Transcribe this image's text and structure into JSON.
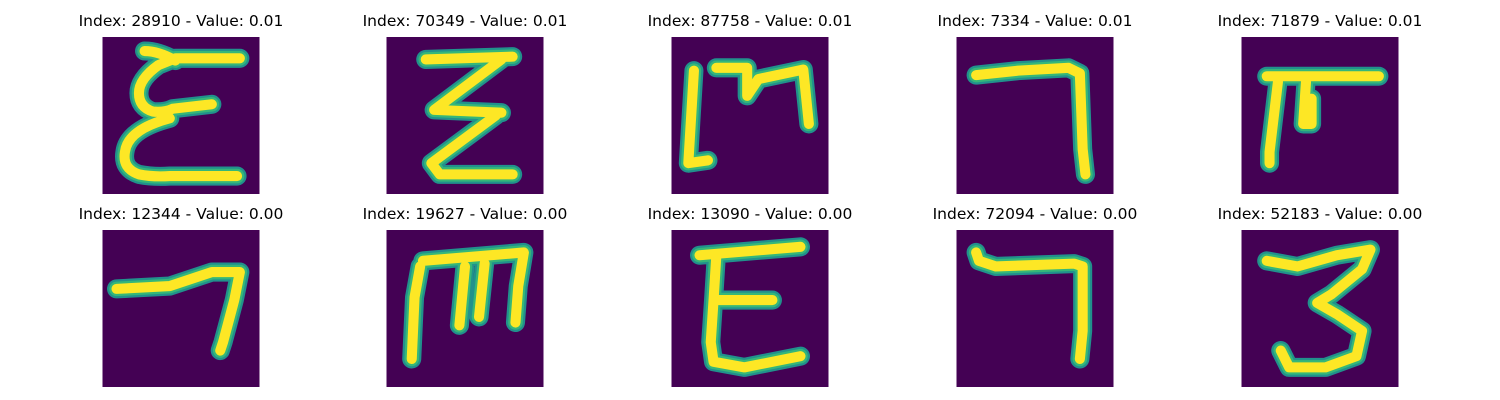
{
  "colors": {
    "background": "#440154",
    "stroke_core": "#fde725",
    "stroke_mid": "#35b779",
    "stroke_edge": "#21918c"
  },
  "panels": [
    {
      "title": "Index: 28910 - Value: 0.01",
      "glyph": "E"
    },
    {
      "title": "Index: 70349 - Value: 0.01",
      "glyph": "E"
    },
    {
      "title": "Index: 87758 - Value: 0.01",
      "glyph": "M"
    },
    {
      "title": "Index: 7334 - Value: 0.01",
      "glyph": "7"
    },
    {
      "title": "Index: 71879 - Value: 0.01",
      "glyph": "T"
    },
    {
      "title": "Index: 12344 - Value: 0.00",
      "glyph": "7"
    },
    {
      "title": "Index: 19627 - Value: 0.00",
      "glyph": "M"
    },
    {
      "title": "Index: 13090 - Value: 0.00",
      "glyph": "E"
    },
    {
      "title": "Index: 72094 - Value: 0.00",
      "glyph": "7"
    },
    {
      "title": "Index: 52183 - Value: 0.00",
      "glyph": "3"
    }
  ]
}
